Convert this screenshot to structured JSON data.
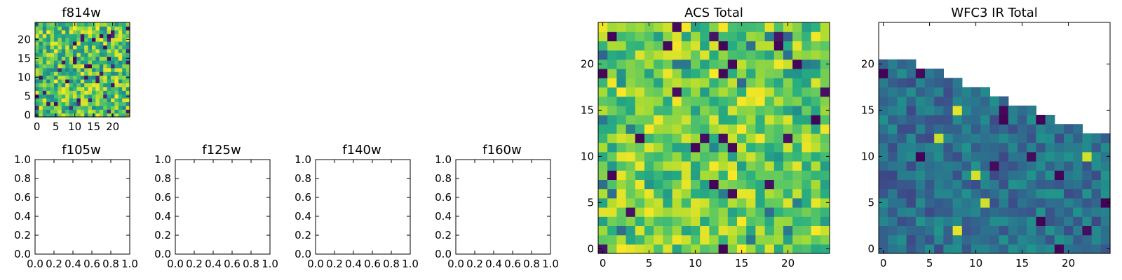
{
  "chart_data": [
    {
      "id": "f814w",
      "type": "heatmap",
      "title": "f814w",
      "xlim": [
        -0.5,
        24.5
      ],
      "ylim": [
        -0.5,
        24.5
      ],
      "xticks": [
        "0",
        "5",
        "10",
        "15",
        "20"
      ],
      "yticks": [
        "0",
        "5",
        "10",
        "15",
        "20"
      ],
      "grid": false,
      "colormap": "viridis",
      "grid_size": [
        25,
        25
      ],
      "value_range": [
        0,
        1
      ],
      "values_note_seed": 814
    },
    {
      "id": "f105w",
      "type": "heatmap",
      "title": "f105w",
      "xlim": [
        0,
        1
      ],
      "ylim": [
        0,
        1
      ],
      "xticks": [
        "0.0",
        "0.2",
        "0.4",
        "0.6",
        "0.8",
        "1.0"
      ],
      "yticks": [
        "0.0",
        "0.2",
        "0.4",
        "0.6",
        "0.8",
        "1.0"
      ],
      "grid": false,
      "empty": true
    },
    {
      "id": "f125w",
      "type": "heatmap",
      "title": "f125w",
      "xlim": [
        0,
        1
      ],
      "ylim": [
        0,
        1
      ],
      "xticks": [
        "0.0",
        "0.2",
        "0.4",
        "0.6",
        "0.8",
        "1.0"
      ],
      "yticks": [
        "0.0",
        "0.2",
        "0.4",
        "0.6",
        "0.8",
        "1.0"
      ],
      "grid": false,
      "empty": true
    },
    {
      "id": "f140w",
      "type": "heatmap",
      "title": "f140w",
      "xlim": [
        0,
        1
      ],
      "ylim": [
        0,
        1
      ],
      "xticks": [
        "0.0",
        "0.2",
        "0.4",
        "0.6",
        "0.8",
        "1.0"
      ],
      "yticks": [
        "0.0",
        "0.2",
        "0.4",
        "0.6",
        "0.8",
        "1.0"
      ],
      "grid": false,
      "empty": true
    },
    {
      "id": "f160w",
      "type": "heatmap",
      "title": "f160w",
      "xlim": [
        0,
        1
      ],
      "ylim": [
        0,
        1
      ],
      "xticks": [
        "0.0",
        "0.2",
        "0.4",
        "0.6",
        "0.8",
        "1.0"
      ],
      "yticks": [
        "0.0",
        "0.2",
        "0.4",
        "0.6",
        "0.8",
        "1.0"
      ],
      "grid": false,
      "empty": true
    },
    {
      "id": "acs_total",
      "type": "heatmap",
      "title": "ACS Total",
      "xlim": [
        -0.5,
        24.5
      ],
      "ylim": [
        -0.5,
        24.5
      ],
      "xticks": [
        "0",
        "5",
        "10",
        "15",
        "20"
      ],
      "yticks": [
        "0",
        "5",
        "10",
        "15",
        "20"
      ],
      "grid": false,
      "colormap": "viridis",
      "grid_size": [
        25,
        25
      ],
      "value_range": [
        0,
        1
      ]
    },
    {
      "id": "wfc3_ir_total",
      "type": "heatmap",
      "title": "WFC3 IR Total",
      "xlim": [
        -0.5,
        24.5
      ],
      "ylim": [
        -0.5,
        24.5
      ],
      "xticks": [
        "0",
        "5",
        "10",
        "15",
        "20"
      ],
      "yticks": [
        "0",
        "5",
        "10",
        "15",
        "20"
      ],
      "grid": false,
      "colormap": "viridis",
      "grid_size": [
        25,
        25
      ],
      "value_range": [
        0,
        1
      ],
      "column_top_row": [
        20,
        20,
        20,
        20,
        19,
        19,
        19,
        18,
        18,
        17,
        17,
        17,
        16,
        16,
        15,
        15,
        15,
        14,
        14,
        13,
        13,
        13,
        12,
        12,
        12
      ]
    }
  ],
  "colors": {
    "viridis_low": "#440154",
    "viridis_mid": "#21918c",
    "viridis_high": "#fde725"
  }
}
